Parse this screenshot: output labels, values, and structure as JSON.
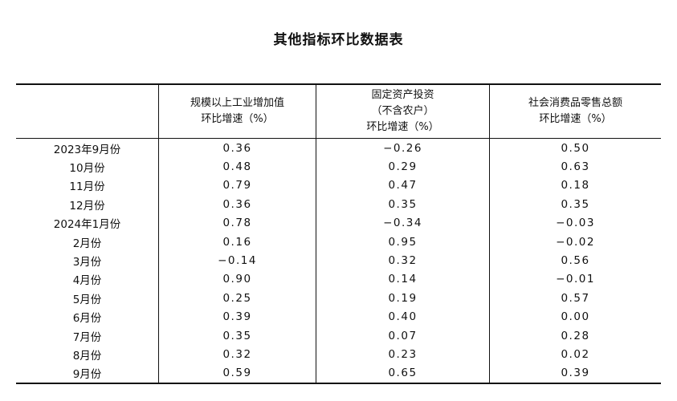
{
  "title": "其他指标环比数据表",
  "headers": {
    "col1": [
      "规模以上工业增加值",
      "环比增速（%）"
    ],
    "col2": [
      "固定资产投资",
      "（不含农户）",
      "环比增速（%）"
    ],
    "col3": [
      "社会消费品零售总额",
      "环比增速（%）"
    ]
  },
  "rows": [
    {
      "period": "2023年9月份",
      "industrial": "0.36",
      "investment": "−0.26",
      "retail": "0.50"
    },
    {
      "period": "10月份",
      "industrial": "0.48",
      "investment": "0.29",
      "retail": "0.63"
    },
    {
      "period": "11月份",
      "industrial": "0.79",
      "investment": "0.47",
      "retail": "0.18"
    },
    {
      "period": "12月份",
      "industrial": "0.36",
      "investment": "0.35",
      "retail": "0.35"
    },
    {
      "period": "2024年1月份",
      "industrial": "0.78",
      "investment": "−0.34",
      "retail": "−0.03"
    },
    {
      "period": "2月份",
      "industrial": "0.16",
      "investment": "0.95",
      "retail": "−0.02"
    },
    {
      "period": "3月份",
      "industrial": "−0.14",
      "investment": "0.32",
      "retail": "0.56"
    },
    {
      "period": "4月份",
      "industrial": "0.90",
      "investment": "0.14",
      "retail": "−0.01"
    },
    {
      "period": "5月份",
      "industrial": "0.25",
      "investment": "0.19",
      "retail": "0.57"
    },
    {
      "period": "6月份",
      "industrial": "0.39",
      "investment": "0.40",
      "retail": "0.00"
    },
    {
      "period": "7月份",
      "industrial": "0.35",
      "investment": "0.07",
      "retail": "0.28"
    },
    {
      "period": "8月份",
      "industrial": "0.32",
      "investment": "0.23",
      "retail": "0.02"
    },
    {
      "period": "9月份",
      "industrial": "0.59",
      "investment": "0.65",
      "retail": "0.39"
    }
  ]
}
